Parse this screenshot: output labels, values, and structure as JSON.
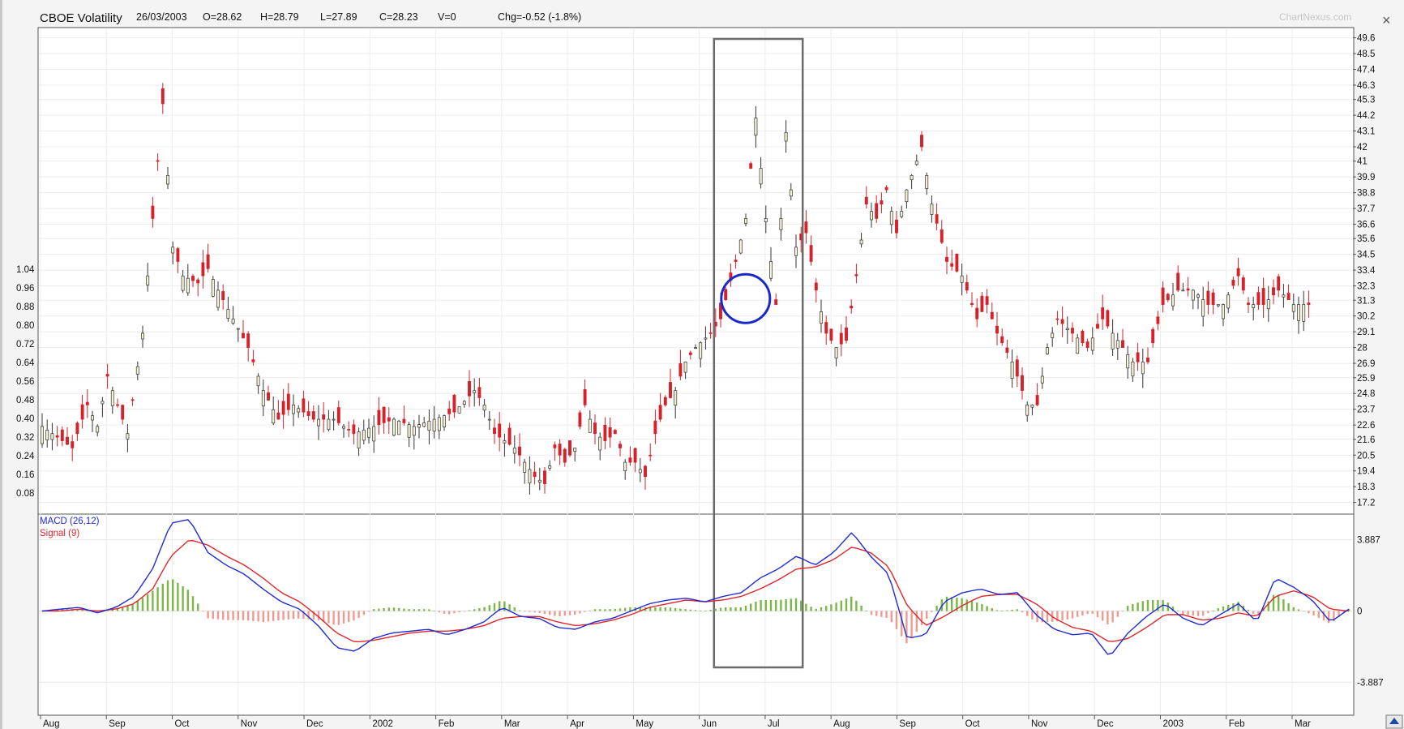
{
  "header": {
    "name": "CBOE Volatility",
    "date": "26/03/2003",
    "open": "O=28.62",
    "high": "H=28.79",
    "low": "L=27.89",
    "close": "C=28.23",
    "volume": "V=0",
    "change": "Chg=-0.52 (-1.8%)",
    "watermark": "ChartNexus.com"
  },
  "colors": {
    "up_candle": "#f4f1d6",
    "down_candle": "#d4232b",
    "macd_line": "#1f2bd4",
    "signal_line": "#e0262b",
    "hist_positive": "#7ab648",
    "hist_negative": "#ee9a90",
    "highlight_box": "#6b6b6b",
    "circle": "#1a2ac8"
  },
  "chart_data": [
    {
      "type": "candlestick",
      "title": "CBOE Volatility",
      "x_labels": [
        "Aug",
        "Sep",
        "Oct",
        "Nov",
        "Dec",
        "2002",
        "Feb",
        "Mar",
        "Apr",
        "May",
        "Jun",
        "Jul",
        "Aug",
        "Sep",
        "Oct",
        "Nov",
        "Dec",
        "2003",
        "Feb",
        "Mar"
      ],
      "right_axis_ticks": [
        "49.6",
        "48.5",
        "47.4",
        "46.3",
        "45.3",
        "44.2",
        "43.1",
        "42",
        "41",
        "39.9",
        "38.8",
        "37.7",
        "36.6",
        "35.6",
        "34.5",
        "33.4",
        "32.3",
        "31.3",
        "30.2",
        "29.1",
        "28",
        "26.9",
        "25.9",
        "24.8",
        "23.7",
        "22.6",
        "21.6",
        "20.5",
        "19.4",
        "18.3",
        "17.2"
      ],
      "left_axis_ticks": [
        "1.04",
        "0.96",
        "0.88",
        "0.80",
        "0.72",
        "0.64",
        "0.56",
        "0.48",
        "0.40",
        "0.32",
        "0.24",
        "0.16",
        "0.08"
      ],
      "ylim": [
        16.5,
        50.2
      ],
      "close_path": [
        [
          0,
          22.5
        ],
        [
          6,
          21
        ],
        [
          9,
          24
        ],
        [
          11,
          22.5
        ],
        [
          13,
          26
        ],
        [
          15,
          24
        ],
        [
          17,
          22
        ],
        [
          20,
          29
        ],
        [
          22,
          37
        ],
        [
          24,
          45
        ],
        [
          26,
          35
        ],
        [
          28,
          33
        ],
        [
          31,
          32.5
        ],
        [
          33,
          33.5
        ],
        [
          35,
          32
        ],
        [
          38,
          30
        ],
        [
          41,
          28
        ],
        [
          44,
          25
        ],
        [
          47,
          23
        ],
        [
          50,
          24
        ],
        [
          54,
          23
        ],
        [
          58,
          23
        ],
        [
          62,
          22
        ],
        [
          66,
          22.5
        ],
        [
          70,
          23
        ],
        [
          74,
          22.5
        ],
        [
          78,
          23
        ],
        [
          82,
          23.5
        ],
        [
          86,
          25
        ],
        [
          88,
          24
        ],
        [
          90,
          22
        ],
        [
          92,
          21.5
        ],
        [
          94,
          21
        ],
        [
          96,
          20
        ],
        [
          98,
          19
        ],
        [
          100,
          18.5
        ],
        [
          102,
          21
        ],
        [
          104,
          20
        ],
        [
          106,
          21
        ],
        [
          108,
          24
        ],
        [
          110,
          22
        ],
        [
          112,
          21.5
        ],
        [
          114,
          22
        ],
        [
          116,
          20
        ],
        [
          118,
          20
        ],
        [
          120,
          19
        ],
        [
          122,
          22
        ],
        [
          124,
          24
        ],
        [
          126,
          25
        ],
        [
          128,
          27
        ],
        [
          130,
          28
        ],
        [
          133,
          29
        ],
        [
          135,
          30
        ],
        [
          138,
          34
        ],
        [
          140,
          37
        ],
        [
          142,
          44
        ],
        [
          144,
          37
        ],
        [
          146,
          31
        ],
        [
          148,
          43
        ],
        [
          150,
          35
        ],
        [
          152,
          36
        ],
        [
          154,
          32
        ],
        [
          156,
          29
        ],
        [
          158,
          28
        ],
        [
          160,
          28.5
        ],
        [
          162,
          33
        ],
        [
          164,
          38
        ],
        [
          166,
          37
        ],
        [
          168,
          39
        ],
        [
          170,
          36
        ],
        [
          172,
          39
        ],
        [
          175,
          42
        ],
        [
          177,
          38
        ],
        [
          180,
          34
        ],
        [
          183,
          33
        ],
        [
          186,
          30
        ],
        [
          188,
          31
        ],
        [
          190,
          29
        ],
        [
          193,
          27
        ],
        [
          196,
          24
        ],
        [
          198,
          24
        ],
        [
          200,
          28
        ],
        [
          202,
          30
        ],
        [
          205,
          29
        ],
        [
          208,
          28
        ],
        [
          211,
          30
        ],
        [
          214,
          28.5
        ],
        [
          217,
          27
        ],
        [
          220,
          27
        ],
        [
          223,
          31
        ],
        [
          226,
          32
        ],
        [
          229,
          32
        ],
        [
          232,
          31
        ],
        [
          235,
          31
        ],
        [
          238,
          33
        ],
        [
          240,
          31
        ],
        [
          243,
          31
        ],
        [
          246,
          32
        ],
        [
          249,
          31
        ],
        [
          252,
          31
        ]
      ],
      "highlight_range": [
        134,
        151
      ]
    },
    {
      "type": "line",
      "title": "MACD (26,12)",
      "series": [
        {
          "name": "MACD (26,12)",
          "color": "#1f2bd4"
        },
        {
          "name": "Signal (9)",
          "color": "#e0262b"
        }
      ],
      "y_ticks": [
        "3.887",
        "0",
        "-3.887"
      ],
      "ylim": [
        -5.6,
        5.2
      ],
      "macd": [
        0,
        0.1,
        0.2,
        -0.1,
        0.2,
        0.8,
        2.3,
        4.8,
        5.0,
        3.2,
        2.5,
        2.0,
        1.2,
        0.5,
        0.1,
        -0.8,
        -2.0,
        -2.2,
        -1.5,
        -1.2,
        -1.1,
        -1.0,
        -1.3,
        -1.0,
        -0.6,
        0.2,
        -0.3,
        -0.4,
        -0.9,
        -1.0,
        -0.6,
        -0.4,
        0,
        0.4,
        0.6,
        0.7,
        0.5,
        0.8,
        1.0,
        1.8,
        2.3,
        3.0,
        2.5,
        3.2,
        4.3,
        3.0,
        2.0,
        -1.5,
        -1.3,
        0.5,
        1.0,
        1.2,
        0.9,
        1.0,
        -0.2,
        -1.0,
        -1.3,
        -1.2,
        -2.5,
        -1.2,
        -0.3,
        0.4,
        -0.4,
        -0.8,
        -0.2,
        0.4,
        -0.6,
        1.8,
        1.3,
        0.6,
        -0.6,
        0.1
      ],
      "signal": [
        0,
        0,
        0.1,
        0,
        0.1,
        0.4,
        1.2,
        3.0,
        3.9,
        3.6,
        3.0,
        2.5,
        1.8,
        1.0,
        0.5,
        -0.3,
        -1.2,
        -1.7,
        -1.6,
        -1.4,
        -1.2,
        -1.1,
        -1.1,
        -1.0,
        -0.8,
        -0.4,
        -0.3,
        -0.3,
        -0.6,
        -0.8,
        -0.7,
        -0.5,
        -0.2,
        0.2,
        0.4,
        0.6,
        0.5,
        0.6,
        0.8,
        1.2,
        1.7,
        2.3,
        2.4,
        2.8,
        3.5,
        3.2,
        2.4,
        0.3,
        -0.8,
        -0.3,
        0.3,
        0.8,
        0.9,
        0.9,
        0.4,
        -0.4,
        -0.9,
        -1.1,
        -1.7,
        -1.5,
        -0.9,
        -0.2,
        -0.2,
        -0.5,
        -0.4,
        -0.1,
        -0.3,
        0.8,
        1.1,
        0.8,
        0.1,
        0
      ]
    }
  ]
}
